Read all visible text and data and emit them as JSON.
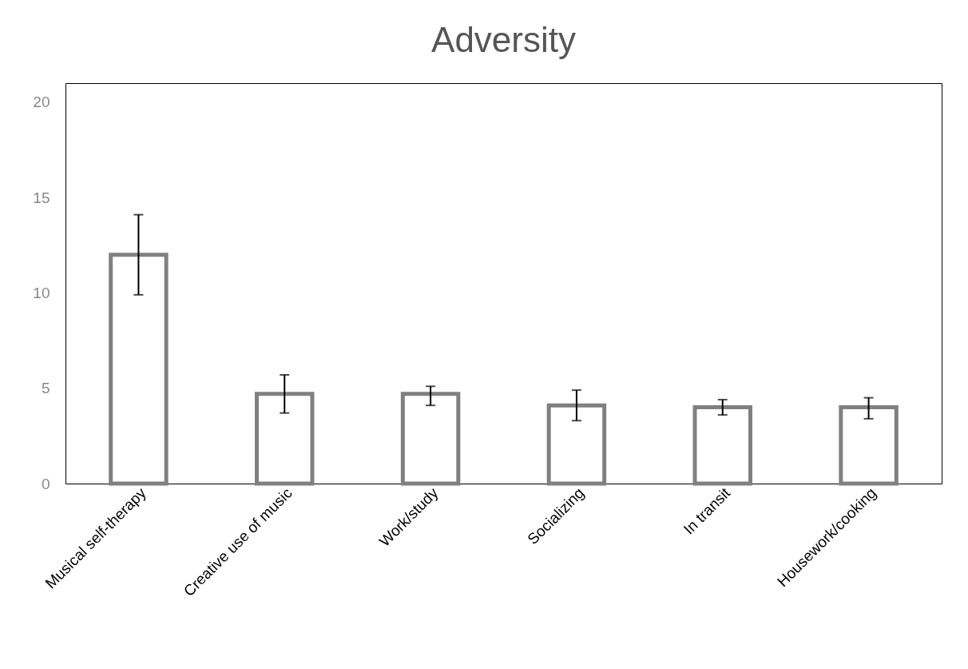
{
  "chart_data": {
    "type": "bar",
    "title": "Adversity",
    "categories": [
      "Musical self-therapy",
      "Creative use of music",
      "Work/study",
      "Socializing",
      "In transit",
      "Housework/cooking"
    ],
    "series": [
      {
        "color": "#808080",
        "values": [
          12.0,
          4.7,
          4.7,
          4.1,
          4.0,
          4.0
        ],
        "errors": [
          [
            9.9,
            14.1
          ],
          [
            3.7,
            5.7
          ],
          [
            4.1,
            5.1
          ],
          [
            3.3,
            4.9
          ],
          [
            3.6,
            4.4
          ],
          [
            3.4,
            4.5
          ]
        ]
      }
    ],
    "ylim": [
      0,
      21
    ],
    "yticks": [
      0,
      5,
      10,
      15,
      20
    ],
    "grid": false
  }
}
